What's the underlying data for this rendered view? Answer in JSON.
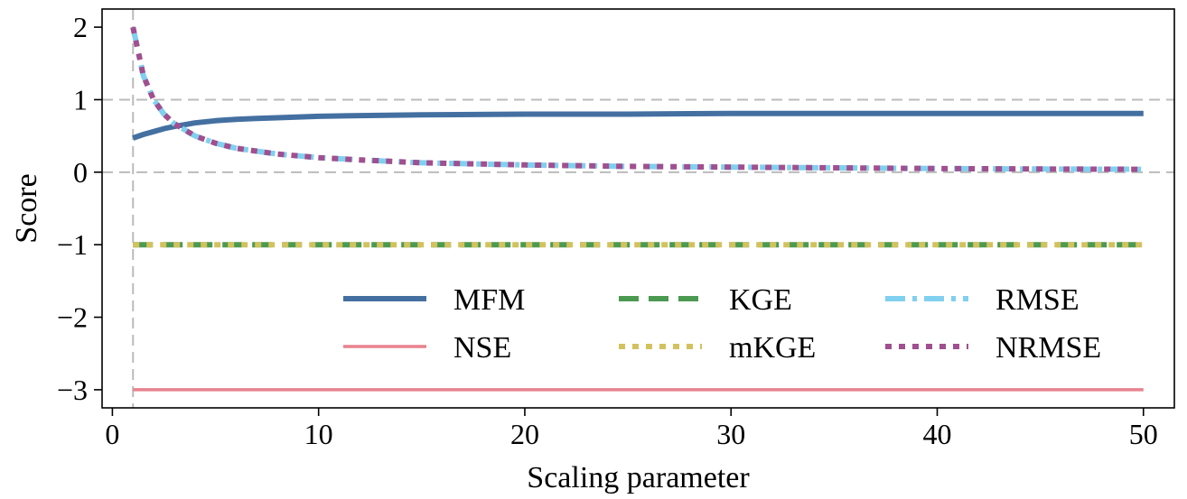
{
  "chart_data": {
    "type": "line",
    "title": "",
    "xlabel": "Scaling parameter",
    "ylabel": "Score",
    "xlim": [
      -0.5,
      51.5
    ],
    "ylim": [
      -3.25,
      2.25
    ],
    "xticks": [
      0,
      10,
      20,
      30,
      40,
      50
    ],
    "yticks": [
      -3,
      -2,
      -1,
      0,
      1,
      2
    ],
    "xtick_labels": [
      "0",
      "10",
      "20",
      "30",
      "40",
      "50"
    ],
    "ytick_labels": [
      "−3",
      "−2",
      "−1",
      "0",
      "1",
      "2"
    ],
    "reference_lines": {
      "horizontal": [
        0,
        1
      ],
      "vertical": [
        1
      ],
      "style": "dashed",
      "color": "#bbbbbb"
    },
    "legend": {
      "placement": "lower-right",
      "columns": 3
    },
    "x": [
      1,
      1.5,
      2,
      2.5,
      3,
      4,
      5,
      6,
      7,
      8,
      10,
      12,
      15,
      20,
      25,
      30,
      35,
      40,
      45,
      50
    ],
    "series": [
      {
        "name": "MFM",
        "color": "#4470a1",
        "dash": "solid",
        "width": 6,
        "values": [
          0.47,
          0.52,
          0.56,
          0.6,
          0.63,
          0.68,
          0.71,
          0.73,
          0.74,
          0.75,
          0.77,
          0.78,
          0.79,
          0.8,
          0.8,
          0.81,
          0.81,
          0.81,
          0.81,
          0.81
        ]
      },
      {
        "name": "NSE",
        "color": "#e8828e",
        "dash": "solid",
        "width": 3.5,
        "values": [
          -3,
          -3,
          -3,
          -3,
          -3,
          -3,
          -3,
          -3,
          -3,
          -3,
          -3,
          -3,
          -3,
          -3,
          -3,
          -3,
          -3,
          -3,
          -3,
          -3
        ]
      },
      {
        "name": "KGE",
        "color": "#4c9a52",
        "dash": "dashed",
        "width": 6,
        "values": [
          -1,
          -1,
          -1,
          -1,
          -1,
          -1,
          -1,
          -1,
          -1,
          -1,
          -1,
          -1,
          -1,
          -1,
          -1,
          -1,
          -1,
          -1,
          -1,
          -1
        ]
      },
      {
        "name": "mKGE",
        "color": "#d2c25e",
        "dash": "dotted",
        "width": 6,
        "values": [
          -1,
          -1,
          -1,
          -1,
          -1,
          -1,
          -1,
          -1,
          -1,
          -1,
          -1,
          -1,
          -1,
          -1,
          -1,
          -1,
          -1,
          -1,
          -1,
          -1
        ]
      },
      {
        "name": "RMSE",
        "color": "#80d0ef",
        "dash": "dashdot",
        "width": 6,
        "values": [
          2,
          1.33,
          1,
          0.8,
          0.67,
          0.5,
          0.4,
          0.33,
          0.29,
          0.25,
          0.2,
          0.17,
          0.13,
          0.1,
          0.08,
          0.07,
          0.06,
          0.05,
          0.044,
          0.04
        ]
      },
      {
        "name": "NRMSE",
        "color": "#a04f8f",
        "dash": "dotted",
        "width": 6,
        "values": [
          2,
          1.33,
          1,
          0.8,
          0.67,
          0.5,
          0.4,
          0.33,
          0.29,
          0.25,
          0.2,
          0.17,
          0.13,
          0.1,
          0.08,
          0.07,
          0.06,
          0.05,
          0.044,
          0.04
        ]
      }
    ]
  }
}
